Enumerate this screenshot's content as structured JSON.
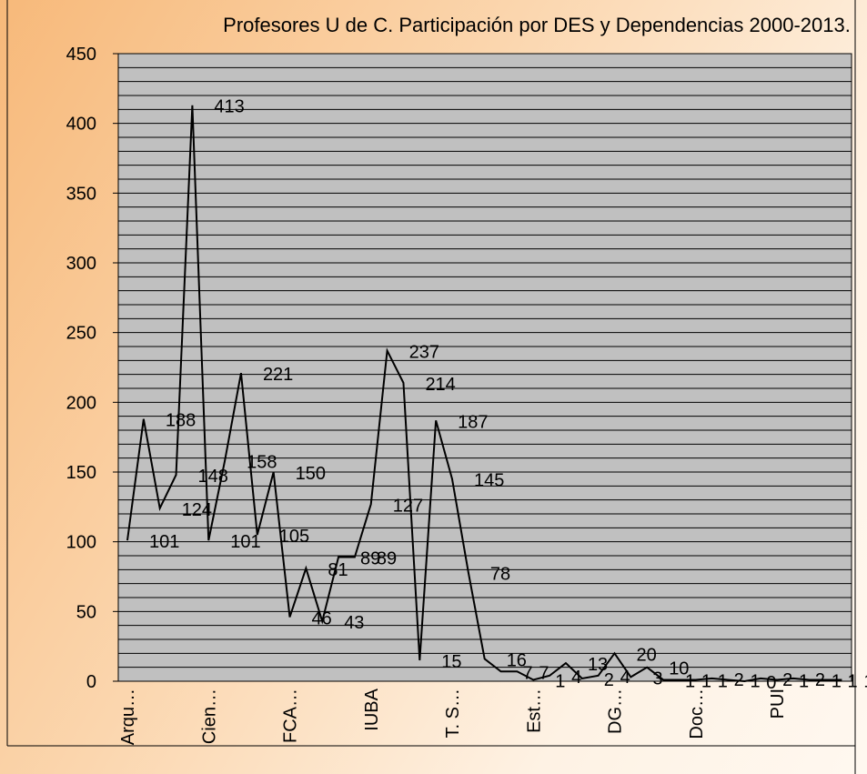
{
  "chart_data": {
    "type": "line",
    "title": "Profesores U de C. Participación por DES y Dependencias 2000-2013.",
    "categories": [
      "Arqu…",
      null,
      null,
      null,
      null,
      "Cien…",
      null,
      null,
      null,
      null,
      "FCA…",
      null,
      null,
      null,
      null,
      "IUBA",
      null,
      null,
      null,
      null,
      "T. S…",
      null,
      null,
      null,
      null,
      "Est…",
      null,
      null,
      null,
      null,
      "DG…",
      null,
      null,
      null,
      null,
      "Doc…",
      null,
      null,
      null,
      null,
      "PUI",
      null,
      null,
      null,
      null
    ],
    "series": [
      {
        "name": "Profesores",
        "color": "#000000",
        "values": [
          101,
          188,
          124,
          148,
          413,
          101,
          158,
          221,
          105,
          150,
          46,
          81,
          43,
          89,
          89,
          127,
          237,
          214,
          15,
          187,
          145,
          78,
          16,
          7,
          7,
          1,
          4,
          13,
          2,
          4,
          20,
          3,
          10,
          1,
          1,
          1,
          2,
          1,
          0,
          2,
          1,
          2,
          1,
          1,
          1
        ]
      }
    ],
    "ylim": [
      0,
      450
    ],
    "yticks": [
      0,
      50,
      100,
      150,
      200,
      250,
      300,
      350,
      400,
      450
    ],
    "minor_yticks": [
      0,
      10,
      20,
      30,
      40,
      50,
      60,
      70,
      80,
      90,
      100,
      110,
      120,
      130,
      140,
      150,
      160,
      170,
      180,
      190,
      200,
      210,
      220,
      230,
      240,
      250,
      260,
      270,
      280,
      290,
      300,
      310,
      320,
      330,
      340,
      350,
      360,
      370,
      380,
      390,
      400,
      410,
      420,
      430,
      440,
      450
    ],
    "grid": true,
    "plot_background": "#c0c0c0"
  }
}
